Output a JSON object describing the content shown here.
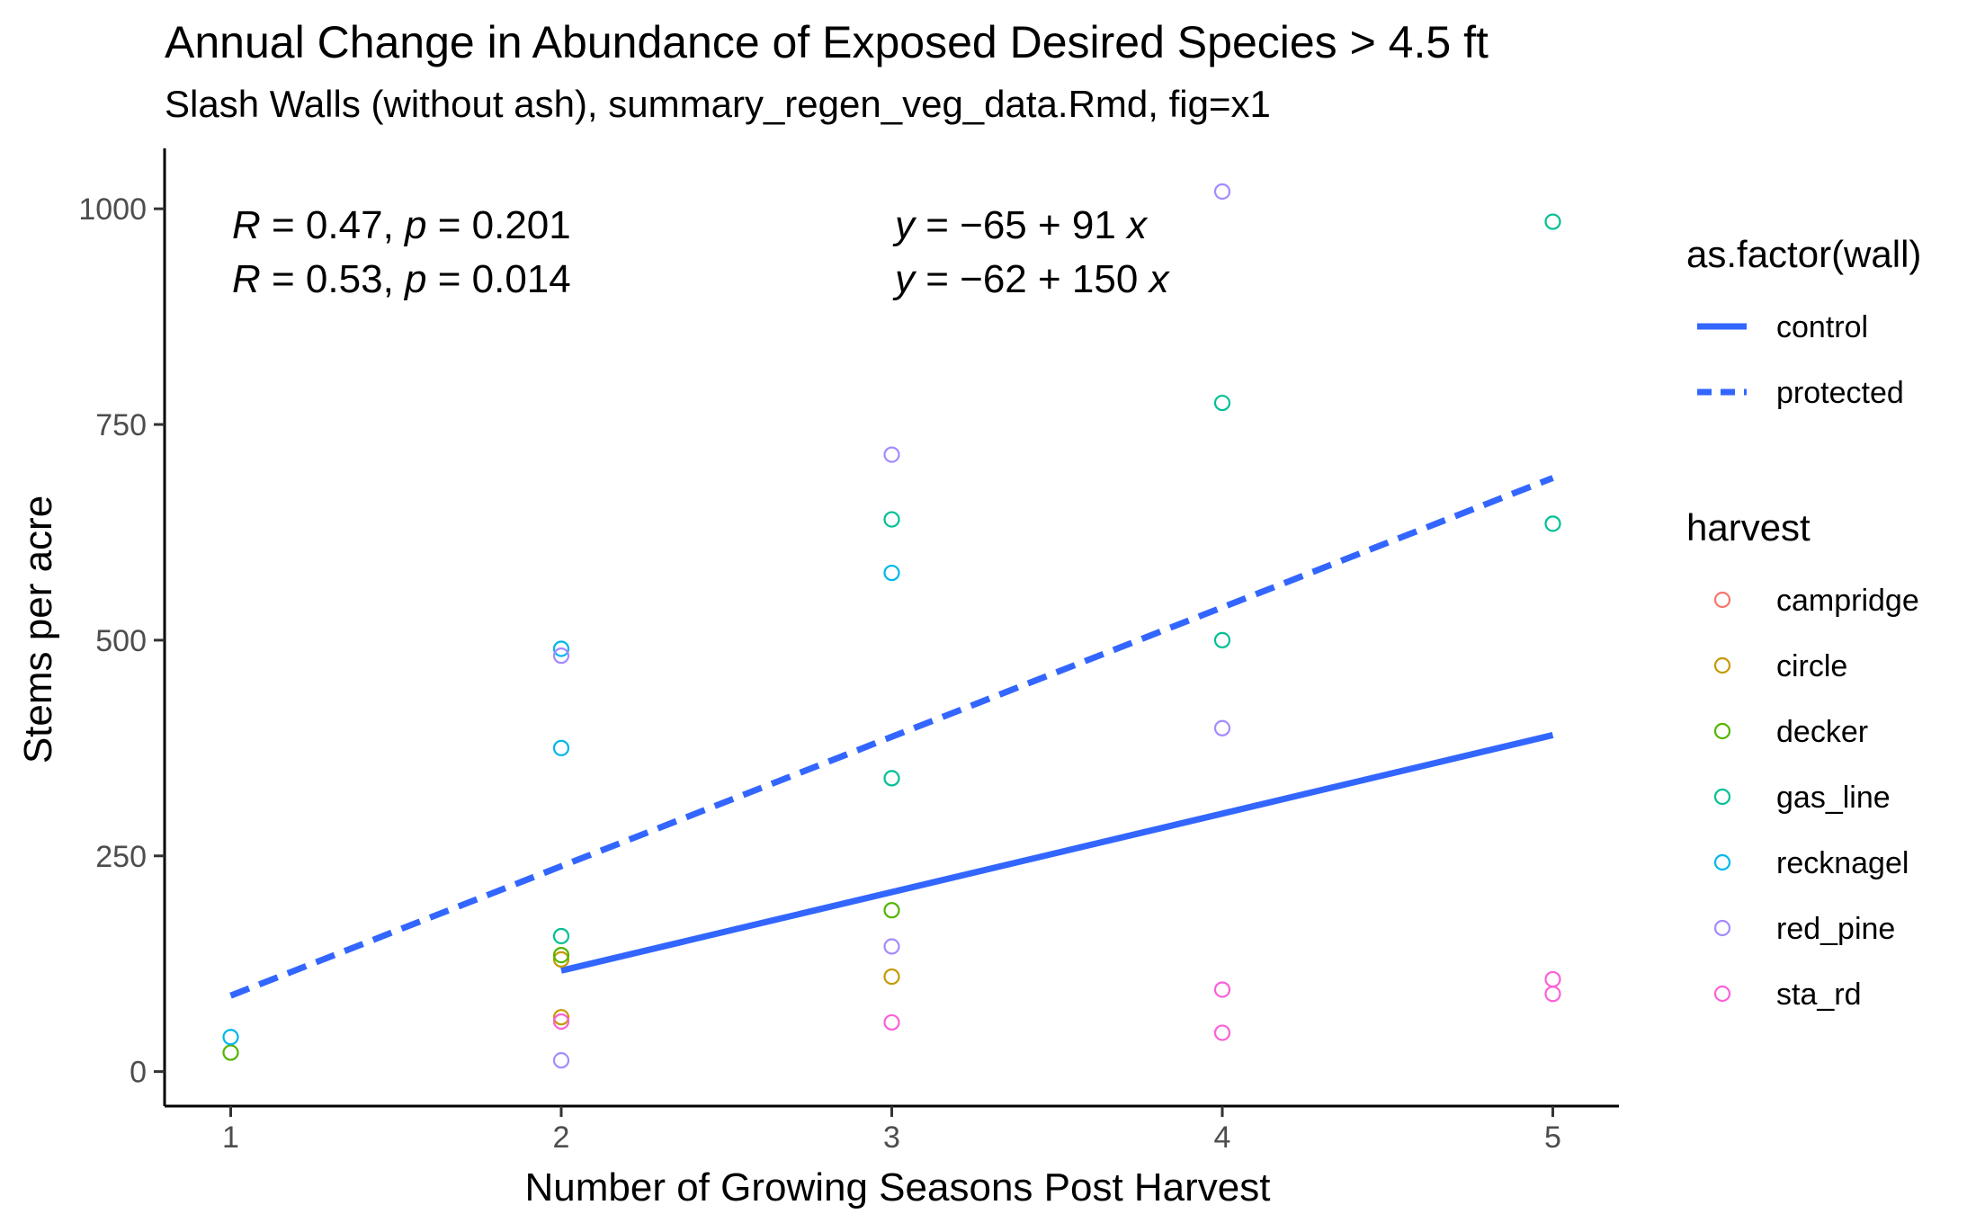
{
  "chart_data": {
    "type": "scatter",
    "title": "Annual Change in Abundance of Exposed Desired Species > 4.5 ft",
    "subtitle": "Slash Walls (without ash), summary_regen_veg_data.Rmd, fig=x1",
    "xlabel": "Number of Growing Seasons Post Harvest",
    "ylabel": "Stems per acre",
    "xlim": [
      0.8,
      5.2
    ],
    "ylim": [
      -40,
      1070
    ],
    "x_ticks": [
      1,
      2,
      3,
      4,
      5
    ],
    "y_ticks": [
      0,
      250,
      500,
      750,
      1000
    ],
    "grid": false,
    "annotations": {
      "r_control": {
        "r_label": "R",
        "r_text": " = 0.47, ",
        "p_label": "p",
        "p_text": " = 0.201"
      },
      "r_protected": {
        "r_label": "R",
        "r_text": " = 0.53, ",
        "p_label": "p",
        "p_text": " = 0.014"
      },
      "eq_control": {
        "y_label": "y",
        "eq_text": " = −65 + 91 ",
        "x_label": "x"
      },
      "eq_protected": {
        "y_label": "y",
        "eq_text": " = −62 + 150 ",
        "x_label": "x"
      }
    },
    "fit_lines": [
      {
        "name": "control",
        "linetype": "solid",
        "intercept": -65,
        "slope": 91,
        "x_range": [
          2,
          5
        ],
        "color": "#3366ff"
      },
      {
        "name": "protected",
        "linetype": "dashed",
        "intercept": -62,
        "slope": 150,
        "x_range": [
          1,
          5
        ],
        "color": "#3366ff"
      }
    ],
    "series": [
      {
        "name": "campridge",
        "color": "#F8766D",
        "points": []
      },
      {
        "name": "circle",
        "color": "#C49A00",
        "points": [
          [
            2,
            63
          ],
          [
            2,
            130
          ],
          [
            3,
            110
          ]
        ]
      },
      {
        "name": "decker",
        "color": "#53B400",
        "points": [
          [
            1,
            22
          ],
          [
            2,
            135
          ],
          [
            3,
            187
          ]
        ]
      },
      {
        "name": "gas_line",
        "color": "#00C094",
        "points": [
          [
            2,
            157
          ],
          [
            3,
            640
          ],
          [
            3,
            340
          ],
          [
            4,
            775
          ],
          [
            4,
            500
          ],
          [
            5,
            985
          ],
          [
            5,
            635
          ]
        ]
      },
      {
        "name": "recknagel",
        "color": "#00B6EB",
        "points": [
          [
            1,
            40
          ],
          [
            2,
            490
          ],
          [
            2,
            375
          ],
          [
            3,
            578
          ]
        ]
      },
      {
        "name": "red_pine",
        "color": "#A58AFF",
        "points": [
          [
            2,
            482
          ],
          [
            2,
            13
          ],
          [
            3,
            715
          ],
          [
            3,
            145
          ],
          [
            4,
            1020
          ],
          [
            4,
            398
          ]
        ]
      },
      {
        "name": "sta_rd",
        "color": "#FB61D7",
        "points": [
          [
            2,
            58
          ],
          [
            3,
            57
          ],
          [
            4,
            95
          ],
          [
            4,
            45
          ],
          [
            5,
            107
          ],
          [
            5,
            90
          ]
        ]
      }
    ],
    "legend": {
      "placement": "right",
      "wall_title": "as.factor(wall)",
      "wall_items": [
        {
          "label": "control",
          "linetype": "solid"
        },
        {
          "label": "protected",
          "linetype": "dashed"
        }
      ],
      "harvest_title": "harvest"
    }
  }
}
